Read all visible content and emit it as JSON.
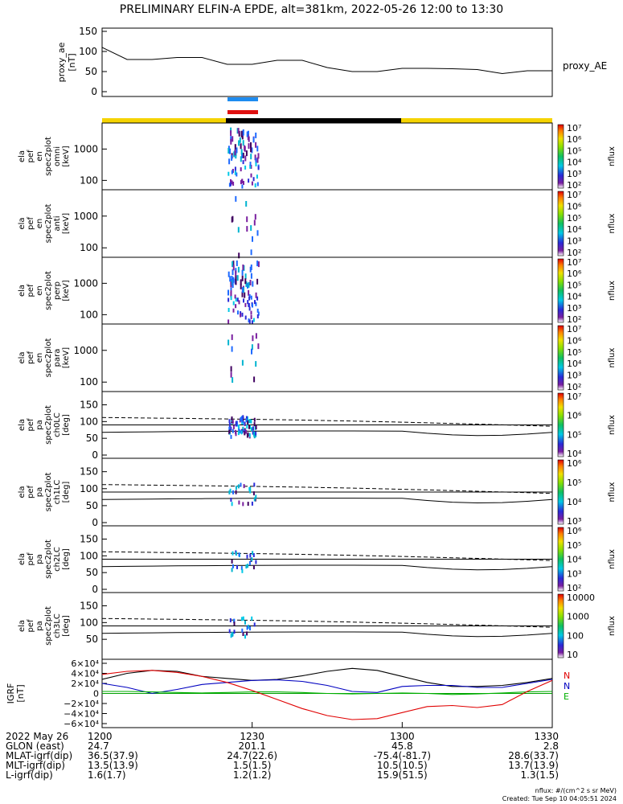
{
  "title": "PRELIMINARY ELFIN-A EPDE, alt=381km, 2022-05-26 12:00 to 13:30",
  "colors": {
    "yellow": "#f5d300",
    "black": "#000000",
    "blue_bar": "#1e8cf0",
    "red_bar": "#e01010"
  },
  "chart_data": [
    {
      "type": "line",
      "id": "proxy_ae",
      "ylabel_lines": [
        "proxy_ae",
        "[nT]"
      ],
      "right_label": "proxy_AE",
      "ylim": [
        0,
        150
      ],
      "yticks": [
        "0",
        "50",
        "100",
        "150"
      ],
      "x_minutes": [
        0,
        5,
        10,
        15,
        20,
        25,
        30,
        35,
        40,
        45,
        50,
        55,
        60,
        65,
        70,
        75,
        80,
        85,
        90
      ],
      "values": [
        110,
        80,
        80,
        85,
        85,
        68,
        68,
        78,
        78,
        60,
        50,
        50,
        58,
        58,
        57,
        55,
        45,
        52,
        52
      ]
    },
    {
      "type": "heatmap",
      "id": "omni",
      "ylabel_lines": [
        "ela",
        "pef",
        "en",
        "spec2plot",
        "omni",
        "[keV]"
      ],
      "ytick_labels": [
        "100",
        "1000"
      ],
      "colorbar_labels": [
        "10²",
        "10³",
        "10⁴",
        "10⁵",
        "10⁶",
        "10⁷"
      ],
      "colorbar_unit": "nflux"
    },
    {
      "type": "heatmap",
      "id": "anti",
      "ylabel_lines": [
        "ela",
        "pef",
        "en",
        "spec2plot",
        "anti",
        "[keV]"
      ],
      "ytick_labels": [
        "100",
        "1000"
      ],
      "colorbar_labels": [
        "10²",
        "10³",
        "10⁴",
        "10⁵",
        "10⁶",
        "10⁷"
      ],
      "colorbar_unit": "nflux"
    },
    {
      "type": "heatmap",
      "id": "perp",
      "ylabel_lines": [
        "ela",
        "pef",
        "en",
        "spec2plot",
        "perp",
        "[keV]"
      ],
      "ytick_labels": [
        "100",
        "1000"
      ],
      "colorbar_labels": [
        "10²",
        "10³",
        "10⁴",
        "10⁵",
        "10⁶",
        "10⁷"
      ],
      "colorbar_unit": "nflux"
    },
    {
      "type": "heatmap",
      "id": "para",
      "ylabel_lines": [
        "ela",
        "pef",
        "en",
        "spec2plot",
        "para",
        "[keV]"
      ],
      "ytick_labels": [
        "100",
        "1000"
      ],
      "colorbar_labels": [
        "10²",
        "10³",
        "10⁴",
        "10⁵",
        "10⁶",
        "10⁷"
      ],
      "colorbar_unit": "nflux"
    },
    {
      "type": "heatmap",
      "id": "ch0LC",
      "ylabel_lines": [
        "ela",
        "pef",
        "pa",
        "spec2plot",
        "ch0LC",
        "[deg]"
      ],
      "ytick_labels": [
        "0",
        "50",
        "100",
        "150"
      ],
      "colorbar_labels": [
        "10⁴",
        "10⁵",
        "10⁶",
        "10⁷"
      ],
      "colorbar_unit": "nflux"
    },
    {
      "type": "heatmap",
      "id": "ch1LC",
      "ylabel_lines": [
        "ela",
        "pef",
        "pa",
        "spec2plot",
        "ch1LC",
        "[deg]"
      ],
      "ytick_labels": [
        "0",
        "50",
        "100",
        "150"
      ],
      "colorbar_labels": [
        "10³",
        "10⁴",
        "10⁵",
        "10⁶"
      ],
      "colorbar_unit": "nflux"
    },
    {
      "type": "heatmap",
      "id": "ch2LC",
      "ylabel_lines": [
        "ela",
        "pef",
        "pa",
        "spec2plot",
        "ch2LC",
        "[deg]"
      ],
      "ytick_labels": [
        "0",
        "50",
        "100",
        "150"
      ],
      "colorbar_labels": [
        "10²",
        "10³",
        "10⁴",
        "10⁵",
        "10⁶"
      ],
      "colorbar_unit": "nflux"
    },
    {
      "type": "heatmap",
      "id": "ch3LC",
      "ylabel_lines": [
        "ela",
        "pef",
        "pa",
        "spec2plot",
        "ch3LC",
        "[deg]"
      ],
      "ytick_labels": [
        "50",
        "100",
        "150"
      ],
      "colorbar_labels": [
        "10",
        "100",
        "1000",
        "10000"
      ],
      "colorbar_unit": "nflux"
    },
    {
      "type": "line",
      "id": "igrf",
      "ylabel_lines": [
        "IGRF",
        "[nT]"
      ],
      "ylim": [
        -60000,
        60000
      ],
      "yticks": [
        "−6×10⁴",
        "−4×10⁴",
        "−2×10⁴",
        "0",
        "2×10⁴",
        "4×10⁴",
        "6×10⁴"
      ],
      "x_minutes": [
        0,
        5,
        10,
        15,
        20,
        25,
        30,
        35,
        40,
        45,
        50,
        55,
        60,
        65,
        70,
        75,
        80,
        85,
        90
      ],
      "series": [
        {
          "name": "N",
          "color": "#000000",
          "values": [
            28000,
            40000,
            46000,
            44000,
            34000,
            30000,
            26000,
            28000,
            35000,
            44000,
            50000,
            46000,
            34000,
            22000,
            14000,
            14000,
            16000,
            22000,
            30000
          ]
        },
        {
          "name": "N",
          "color": "#0000c0",
          "values": [
            20000,
            12000,
            0,
            8000,
            18000,
            22000,
            26000,
            27000,
            24000,
            16000,
            4000,
            2000,
            14000,
            16000,
            16000,
            12000,
            12000,
            20000,
            28000
          ]
        },
        {
          "name": "E",
          "color": "#00b000",
          "values": [
            4000,
            4000,
            3000,
            2000,
            1000,
            2000,
            3000,
            3000,
            2000,
            0,
            -1000,
            0,
            1000,
            0,
            -2000,
            -1000,
            1000,
            3000,
            4000
          ]
        },
        {
          "name": "",
          "color": "#e00000",
          "values": [
            38000,
            44000,
            46000,
            42000,
            34000,
            22000,
            6000,
            -12000,
            -30000,
            -44000,
            -52000,
            -50000,
            -38000,
            -26000,
            -24000,
            -28000,
            -22000,
            4000,
            26000
          ]
        }
      ],
      "legend_letters": [
        "N",
        "N",
        "E"
      ]
    }
  ],
  "xaxis": {
    "row_labels": [
      "2022 May 26",
      "GLON (east)",
      "MLAT-igrf(dip)",
      "MLT-igrf(dip)",
      "L-igrf(dip)"
    ],
    "ticks": [
      {
        "minute": 0,
        "values": [
          "1200",
          "24.7",
          "36.5(37.9)",
          "13.5(13.9)",
          "1.6(1.7)"
        ]
      },
      {
        "minute": 30,
        "values": [
          "1230",
          "201.1",
          "24.7(22.6)",
          "1.5(1.5)",
          "1.2(1.2)"
        ]
      },
      {
        "minute": 60,
        "values": [
          "1300",
          "45.8",
          "-75.4(-81.7)",
          "10.5(10.5)",
          "15.9(51.5)"
        ]
      },
      {
        "minute": 90,
        "values": [
          "1330",
          "2.8",
          "28.6(33.7)",
          "13.7(13.9)",
          "1.3(1.5)"
        ]
      }
    ]
  },
  "footer": {
    "units": "nflux: #/(cm^2 s sr MeV)",
    "created": "Created: Tue Sep 10 04:05:51 2024"
  }
}
